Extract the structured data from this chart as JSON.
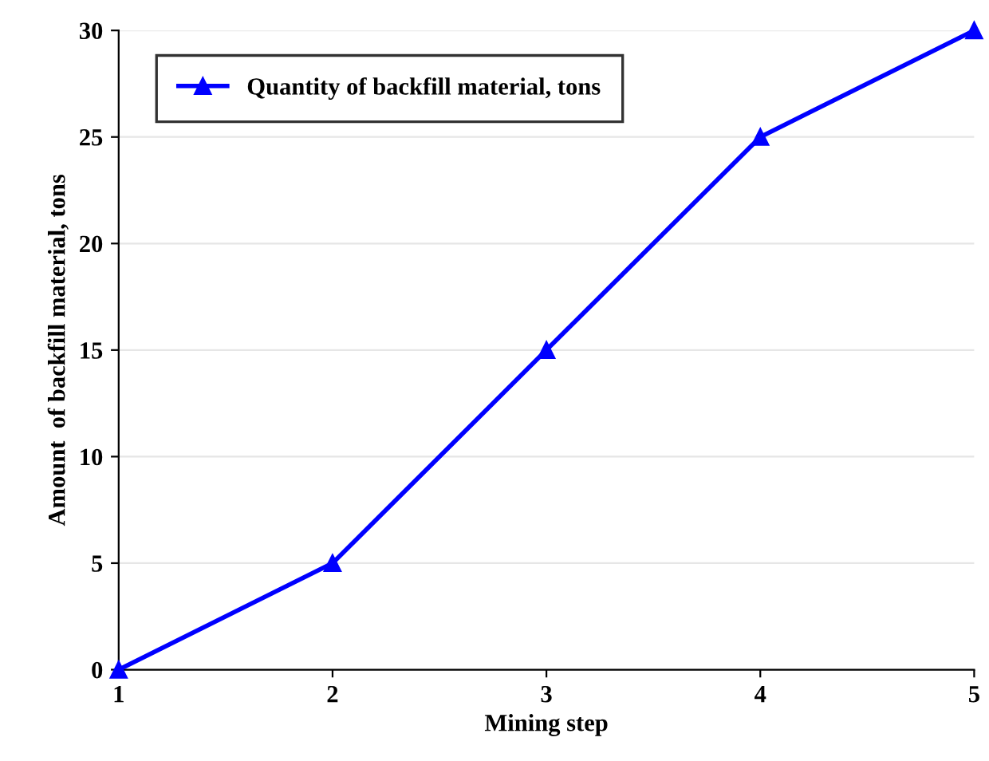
{
  "chart_data": {
    "type": "line",
    "xlabel": "Mining step",
    "ylabel": "Amount  of backfill material, tons",
    "x": [
      1,
      2,
      3,
      4,
      5
    ],
    "series": [
      {
        "name": "Quantity of backfill material, tons",
        "color": "#0000ff",
        "values": [
          0,
          5,
          15,
          25,
          30
        ]
      }
    ],
    "xlim": [
      1,
      5
    ],
    "xticks": [
      1,
      2,
      3,
      4,
      5
    ],
    "ylim": [
      0,
      30
    ],
    "yticks": [
      0,
      5,
      10,
      15,
      20,
      25,
      30
    ],
    "grid": "y",
    "legend": "top left",
    "marker": "triangle",
    "line_style": "solid"
  }
}
